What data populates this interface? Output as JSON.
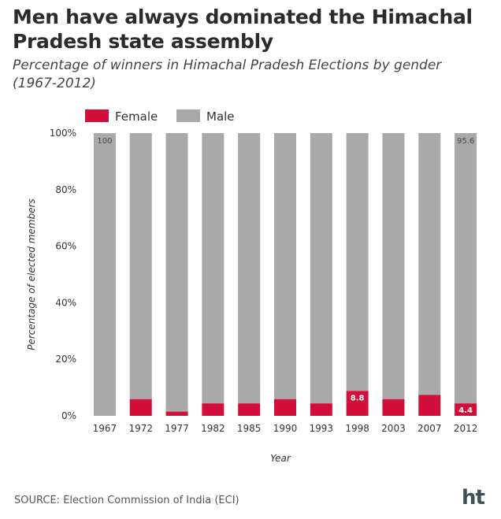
{
  "header": {
    "title": "Men have always dominated the Himachal Pradesh state assembly",
    "subtitle": "Percentage of winners in Himachal Pradesh Elections by gender (1967-2012)"
  },
  "footer": {
    "source": "SOURCE: Election Commission of India (ECI)",
    "logo_text": "ht"
  },
  "colors": {
    "female": "#d0103a",
    "male": "#a9a9a9",
    "logo": "#3d4f5c"
  },
  "chart_data": {
    "type": "bar",
    "stacked": true,
    "xlabel": "Year",
    "ylabel": "Percentage of elected members",
    "ylim": [
      0,
      100
    ],
    "yticks": [
      0,
      20,
      40,
      60,
      80,
      100
    ],
    "ytick_labels": [
      "0%",
      "20%",
      "40%",
      "60%",
      "80%",
      "100%"
    ],
    "legend_position": "top-left",
    "grid": false,
    "categories": [
      "1967",
      "1972",
      "1977",
      "1982",
      "1985",
      "1990",
      "1993",
      "1998",
      "2003",
      "2007",
      "2012"
    ],
    "series": [
      {
        "name": "Female",
        "values": [
          0,
          5.9,
          1.5,
          4.4,
          4.4,
          5.9,
          4.4,
          8.8,
          5.9,
          7.4,
          4.4
        ]
      },
      {
        "name": "Male",
        "values": [
          100,
          94.1,
          98.5,
          95.6,
          95.6,
          94.1,
          95.6,
          91.2,
          94.1,
          92.6,
          95.6
        ]
      }
    ],
    "data_labels": [
      {
        "category": "1967",
        "series": "Male",
        "text": "100"
      },
      {
        "category": "1998",
        "series": "Female",
        "text": "8.8"
      },
      {
        "category": "2012",
        "series": "Female",
        "text": "4.4"
      },
      {
        "category": "2012",
        "series": "Male",
        "text": "95.6"
      }
    ]
  }
}
